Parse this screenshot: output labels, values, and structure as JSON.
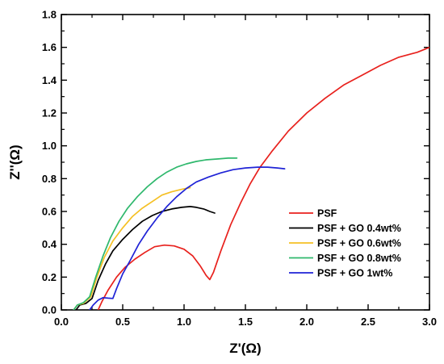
{
  "chart_data": {
    "type": "line",
    "title": "",
    "xlabel": "Z'(Ω)",
    "ylabel": "Z''(Ω)",
    "xlim": [
      0.0,
      3.0
    ],
    "ylim": [
      0.0,
      1.8
    ],
    "xticks": [
      "0.0",
      "0.5",
      "1.0",
      "1.5",
      "2.0",
      "2.5",
      "3.0"
    ],
    "yticks": [
      "0.0",
      "0.2",
      "0.4",
      "0.6",
      "0.8",
      "1.0",
      "1.2",
      "1.4",
      "1.6",
      "1.8"
    ],
    "grid": false,
    "legend_position": "bottom-right",
    "series": [
      {
        "name": "PSF",
        "color": "#e8211d",
        "points": [
          [
            0.3,
            0.0
          ],
          [
            0.33,
            0.05
          ],
          [
            0.38,
            0.12
          ],
          [
            0.45,
            0.2
          ],
          [
            0.52,
            0.26
          ],
          [
            0.6,
            0.31
          ],
          [
            0.68,
            0.35
          ],
          [
            0.76,
            0.385
          ],
          [
            0.84,
            0.395
          ],
          [
            0.92,
            0.39
          ],
          [
            1.0,
            0.37
          ],
          [
            1.07,
            0.33
          ],
          [
            1.13,
            0.27
          ],
          [
            1.18,
            0.21
          ],
          [
            1.21,
            0.185
          ],
          [
            1.24,
            0.23
          ],
          [
            1.3,
            0.36
          ],
          [
            1.38,
            0.52
          ],
          [
            1.46,
            0.65
          ],
          [
            1.54,
            0.77
          ],
          [
            1.62,
            0.87
          ],
          [
            1.72,
            0.97
          ],
          [
            1.85,
            1.09
          ],
          [
            2.0,
            1.2
          ],
          [
            2.15,
            1.29
          ],
          [
            2.3,
            1.37
          ],
          [
            2.45,
            1.43
          ],
          [
            2.6,
            1.49
          ],
          [
            2.75,
            1.54
          ],
          [
            2.9,
            1.57
          ],
          [
            3.0,
            1.6
          ]
        ]
      },
      {
        "name": "PSF + GO 0.4wt%",
        "color": "#000000",
        "points": [
          [
            0.12,
            0.0
          ],
          [
            0.15,
            0.03
          ],
          [
            0.2,
            0.04
          ],
          [
            0.25,
            0.07
          ],
          [
            0.3,
            0.18
          ],
          [
            0.36,
            0.28
          ],
          [
            0.42,
            0.36
          ],
          [
            0.5,
            0.43
          ],
          [
            0.58,
            0.49
          ],
          [
            0.66,
            0.54
          ],
          [
            0.74,
            0.575
          ],
          [
            0.82,
            0.6
          ],
          [
            0.9,
            0.615
          ],
          [
            0.98,
            0.625
          ],
          [
            1.05,
            0.63
          ],
          [
            1.1,
            0.625
          ],
          [
            1.16,
            0.615
          ],
          [
            1.21,
            0.6
          ],
          [
            1.25,
            0.59
          ]
        ]
      },
      {
        "name": "PSF + GO 0.6wt%",
        "color": "#f5c024",
        "points": [
          [
            0.1,
            0.0
          ],
          [
            0.13,
            0.03
          ],
          [
            0.18,
            0.04
          ],
          [
            0.24,
            0.08
          ],
          [
            0.29,
            0.2
          ],
          [
            0.35,
            0.32
          ],
          [
            0.42,
            0.42
          ],
          [
            0.5,
            0.5
          ],
          [
            0.58,
            0.57
          ],
          [
            0.66,
            0.62
          ],
          [
            0.74,
            0.66
          ],
          [
            0.82,
            0.7
          ],
          [
            0.9,
            0.72
          ],
          [
            0.98,
            0.735
          ],
          [
            1.05,
            0.745
          ]
        ]
      },
      {
        "name": "PSF + GO 0.8wt%",
        "color": "#2fb86d",
        "points": [
          [
            0.1,
            0.0
          ],
          [
            0.13,
            0.03
          ],
          [
            0.18,
            0.045
          ],
          [
            0.23,
            0.08
          ],
          [
            0.28,
            0.2
          ],
          [
            0.34,
            0.33
          ],
          [
            0.4,
            0.44
          ],
          [
            0.47,
            0.54
          ],
          [
            0.54,
            0.62
          ],
          [
            0.62,
            0.69
          ],
          [
            0.7,
            0.75
          ],
          [
            0.78,
            0.8
          ],
          [
            0.86,
            0.84
          ],
          [
            0.94,
            0.87
          ],
          [
            1.02,
            0.89
          ],
          [
            1.1,
            0.905
          ],
          [
            1.18,
            0.915
          ],
          [
            1.28,
            0.92
          ],
          [
            1.36,
            0.925
          ],
          [
            1.43,
            0.925
          ]
        ]
      },
      {
        "name": "PSF + GO 1wt%",
        "color": "#1f23d6",
        "points": [
          [
            0.23,
            0.0
          ],
          [
            0.26,
            0.03
          ],
          [
            0.3,
            0.06
          ],
          [
            0.34,
            0.075
          ],
          [
            0.38,
            0.072
          ],
          [
            0.42,
            0.07
          ],
          [
            0.45,
            0.13
          ],
          [
            0.5,
            0.22
          ],
          [
            0.56,
            0.3
          ],
          [
            0.63,
            0.4
          ],
          [
            0.7,
            0.48
          ],
          [
            0.78,
            0.56
          ],
          [
            0.86,
            0.63
          ],
          [
            0.94,
            0.69
          ],
          [
            1.02,
            0.74
          ],
          [
            1.1,
            0.78
          ],
          [
            1.2,
            0.81
          ],
          [
            1.3,
            0.835
          ],
          [
            1.4,
            0.855
          ],
          [
            1.5,
            0.865
          ],
          [
            1.6,
            0.87
          ],
          [
            1.68,
            0.87
          ],
          [
            1.76,
            0.865
          ],
          [
            1.82,
            0.86
          ]
        ]
      }
    ]
  }
}
